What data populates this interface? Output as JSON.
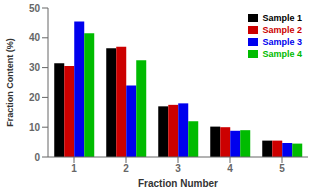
{
  "chart_data": {
    "type": "bar",
    "categories": [
      "1",
      "2",
      "3",
      "4",
      "5"
    ],
    "series": [
      {
        "name": "Sample 1",
        "color": "#000000",
        "values": [
          31.5,
          36.5,
          17.0,
          10.2,
          5.5
        ]
      },
      {
        "name": "Sample 2",
        "color": "#cc0000",
        "values": [
          30.5,
          37.0,
          17.5,
          10.0,
          5.5
        ]
      },
      {
        "name": "Sample 3",
        "color": "#0000ee",
        "values": [
          45.5,
          24.0,
          18.0,
          8.8,
          4.7
        ]
      },
      {
        "name": "Sample 4",
        "color": "#00bb00",
        "values": [
          41.5,
          32.5,
          12.0,
          9.0,
          4.5
        ]
      }
    ],
    "xlabel": "Fraction Number",
    "ylabel": "Fraction Content (%)",
    "ylim": [
      0,
      50
    ],
    "yticks": [
      0,
      10,
      20,
      30,
      40,
      50
    ],
    "grid": false,
    "legend": "upper right"
  }
}
